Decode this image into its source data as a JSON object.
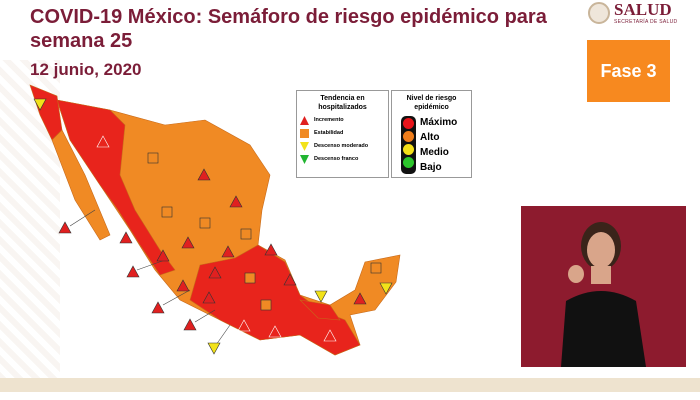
{
  "header": {
    "title": "COVID-19 México: Semáforo de riesgo epidémico para semana 25",
    "date": "12 junio, 2020"
  },
  "logo": {
    "name": "SALUD",
    "subtitle": "SECRETARÍA DE SALUD"
  },
  "phase": {
    "label": "Fase 3",
    "color": "#f7891f"
  },
  "trend_legend": {
    "title": "Tendencia en hospitalizados",
    "items": [
      {
        "label": "Incremento",
        "icon": "triangle-up-red",
        "color": "#e02020"
      },
      {
        "label": "Estabilidad",
        "icon": "square-orange",
        "color": "#f08a24"
      },
      {
        "label": "Descenso moderado",
        "icon": "triangle-down-yellow",
        "color": "#f2e21a"
      },
      {
        "label": "Descenso franco",
        "icon": "triangle-down-green",
        "color": "#22b531"
      }
    ]
  },
  "risk_legend": {
    "title": "Nivel de riesgo epidémico",
    "items": [
      {
        "label": "Máximo",
        "color": "#e8141b"
      },
      {
        "label": "Alto",
        "color": "#f07e1c"
      },
      {
        "label": "Medio",
        "color": "#f4e018"
      },
      {
        "label": "Bajo",
        "color": "#2cc52c"
      }
    ]
  },
  "map_colors": {
    "max": "#e8241c",
    "high": "#f08a24"
  }
}
